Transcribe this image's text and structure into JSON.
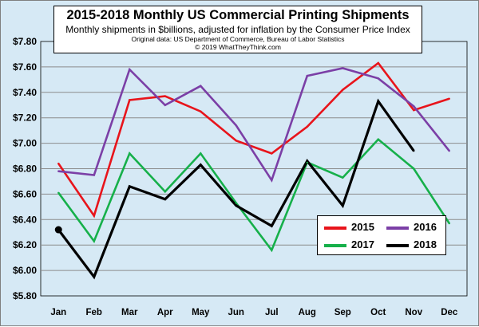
{
  "chart_data": {
    "type": "line",
    "title": "2015-2018 Monthly US Commercial Printing Shipments",
    "subtitle": "Monthly shipments in $billions, adjusted for inflation by the Consumer Price Index",
    "source": "Original data: US Department of Commerce, Bureau of Labor Statistics",
    "copyright": "© 2019 WhatTheyThink.com",
    "categories": [
      "Jan",
      "Feb",
      "Mar",
      "Apr",
      "May",
      "Jun",
      "Jul",
      "Aug",
      "Sep",
      "Oct",
      "Nov",
      "Dec"
    ],
    "ylim": [
      5.8,
      7.8
    ],
    "yticks": [
      "$5.80",
      "$6.00",
      "$6.20",
      "$6.40",
      "$6.60",
      "$6.80",
      "$7.00",
      "$7.20",
      "$7.40",
      "$7.60",
      "$7.80"
    ],
    "grid": true,
    "legend_position": "bottom-right",
    "series": [
      {
        "name": "2015",
        "color": "#e8141b",
        "values": [
          6.84,
          6.43,
          7.34,
          7.37,
          7.25,
          7.02,
          6.92,
          7.13,
          7.42,
          7.63,
          7.26,
          7.35
        ]
      },
      {
        "name": "2016",
        "color": "#7b3fa6",
        "values": [
          6.78,
          6.75,
          7.58,
          7.3,
          7.45,
          7.14,
          6.71,
          7.53,
          7.59,
          7.51,
          7.29,
          6.94
        ]
      },
      {
        "name": "2017",
        "color": "#16b04a",
        "values": [
          6.61,
          6.23,
          6.92,
          6.62,
          6.92,
          6.53,
          6.16,
          6.85,
          6.73,
          7.03,
          6.8,
          6.37
        ]
      },
      {
        "name": "2018",
        "color": "#000000",
        "values": [
          6.32,
          5.95,
          6.66,
          6.56,
          6.83,
          6.51,
          6.35,
          6.86,
          6.51,
          7.33,
          6.94,
          null
        ]
      }
    ]
  }
}
